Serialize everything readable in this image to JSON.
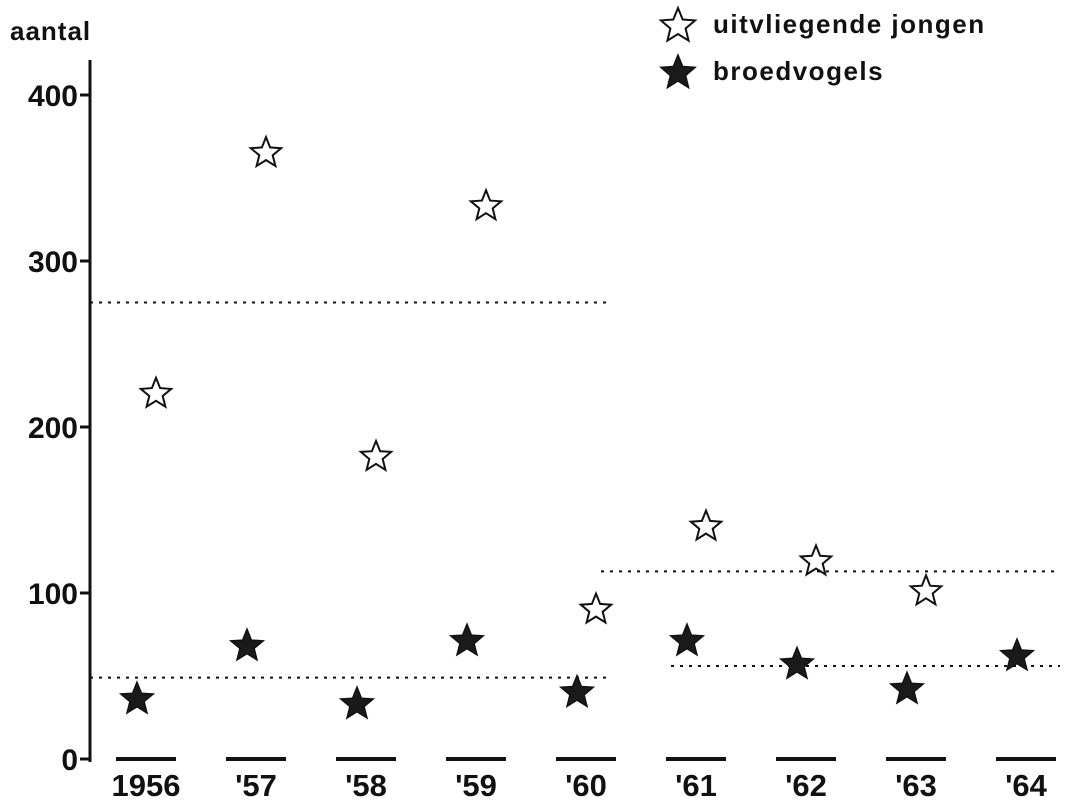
{
  "chart_data": {
    "type": "scatter",
    "ylabel": "aantal",
    "ylim": [
      0,
      400
    ],
    "yticks": [
      0,
      100,
      200,
      300,
      400
    ],
    "ytick_labels": [
      "0",
      "100",
      "200",
      "300",
      "400"
    ],
    "categories": [
      "1956",
      "'57",
      "'58",
      "'59",
      "'60",
      "'61",
      "'62",
      "'63",
      "'64"
    ],
    "grid": false,
    "legend_position": "top-right",
    "series": [
      {
        "name": "uitvliegende jongen",
        "marker": "open-star",
        "values": [
          220,
          365,
          182,
          333,
          90,
          140,
          119,
          101,
          null
        ]
      },
      {
        "name": "broedvogels",
        "marker": "filled-star",
        "values": [
          36,
          68,
          33,
          71,
          40,
          71,
          57,
          42,
          62
        ]
      }
    ],
    "reference_lines": [
      {
        "series": "uitvliegende jongen",
        "style": "dotted",
        "value": 275,
        "from": "1956",
        "to": "'60"
      },
      {
        "series": "broedvogels",
        "style": "dotted",
        "value": 49,
        "from": "1956",
        "to": "'60"
      },
      {
        "series": "uitvliegende jongen",
        "style": "dotted",
        "value": 113,
        "from": "'60",
        "to": "'64"
      },
      {
        "series": "broedvogels",
        "style": "dotted",
        "value": 56,
        "from": "'61",
        "to": "'64"
      }
    ]
  }
}
